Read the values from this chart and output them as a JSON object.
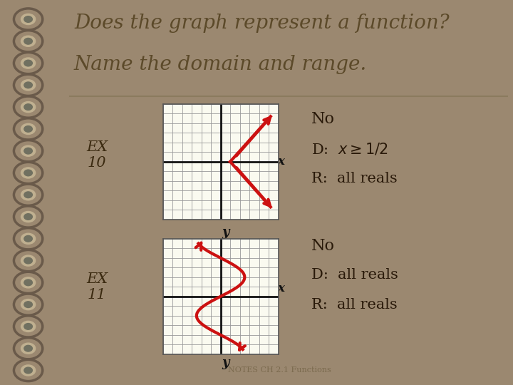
{
  "bg_outer": "#9B8870",
  "bg_paper": "#F2EDD8",
  "bg_grid": "#FAFAF0",
  "title_line1": "Does the graph represent a function?",
  "title_line2": "Name the domain and range.",
  "title_color": "#5C4A2A",
  "title_fontsize": 20,
  "ex10_label": "EX\n10",
  "ex11_label": "EX\n11",
  "label_color": "#3B2A10",
  "answer_color": "#2A1A0A",
  "curve_color": "#CC1111",
  "axis_color": "#111111",
  "grid_color": "#999999",
  "underline_color": "#8B7B5E",
  "footer": "NOTES CH 2.1 Functions",
  "footer_color": "#7B6A4E",
  "spiral_outer": "#6A5A4A",
  "spiral_inner": "#AAAAAA"
}
